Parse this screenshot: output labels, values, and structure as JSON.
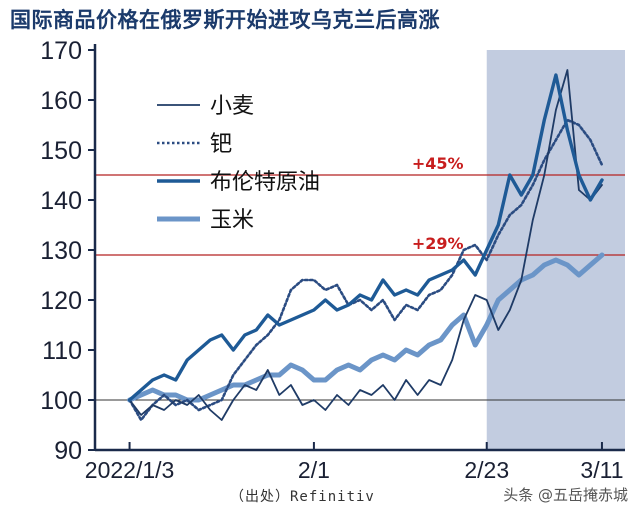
{
  "title": "国际商品价格在俄罗斯开始进攻乌克兰后高涨",
  "source": "（出处）Refinitiv",
  "credit": "头条 @五岳掩赤城",
  "colors": {
    "wheat": "#1f3b66",
    "palladium": "#2b4c82",
    "brent": "#1e5a96",
    "corn": "#6b95c8",
    "shade": "#c2cce0",
    "refline": "#b52222",
    "reftext": "#c81e1e",
    "axis": "#1a2a4a"
  },
  "chart_data": {
    "type": "line",
    "ylim": [
      90,
      170
    ],
    "yticks": [
      90,
      100,
      110,
      120,
      130,
      140,
      150,
      160,
      170
    ],
    "xlim": [
      0,
      46
    ],
    "xticks": [
      {
        "x": 3,
        "label": "2022/1/3"
      },
      {
        "x": 19,
        "label": "2/1"
      },
      {
        "x": 34,
        "label": "2/23"
      },
      {
        "x": 44,
        "label": "3/11"
      }
    ],
    "shaded_region": [
      34,
      46
    ],
    "reference_lines": [
      {
        "y": 145,
        "label": "+45%"
      },
      {
        "y": 129,
        "label": "+29%"
      }
    ],
    "baseline": 100,
    "legend": [
      "小麦",
      "钯",
      "布伦特原油",
      "玉米"
    ],
    "series": [
      {
        "name": "小麦",
        "style": "thin",
        "x": [
          3,
          4,
          5,
          6,
          7,
          8,
          9,
          10,
          11,
          12,
          13,
          14,
          15,
          16,
          17,
          18,
          19,
          20,
          21,
          22,
          23,
          24,
          25,
          26,
          27,
          28,
          29,
          30,
          31,
          32,
          33,
          34,
          35,
          36,
          37,
          38,
          39,
          40,
          41,
          42,
          43,
          44
        ],
        "values": [
          100,
          97,
          99,
          98,
          100,
          99,
          101,
          98,
          96,
          100,
          103,
          102,
          106,
          101,
          103,
          99,
          100,
          98,
          101,
          99,
          102,
          101,
          103,
          100,
          104,
          101,
          104,
          103,
          108,
          116,
          121,
          120,
          114,
          118,
          124,
          136,
          145,
          158,
          166,
          142,
          140,
          143
        ]
      },
      {
        "name": "钯",
        "style": "dotted",
        "x": [
          3,
          4,
          5,
          6,
          7,
          8,
          9,
          10,
          11,
          12,
          13,
          14,
          15,
          16,
          17,
          18,
          19,
          20,
          21,
          22,
          23,
          24,
          25,
          26,
          27,
          28,
          29,
          30,
          31,
          32,
          33,
          34,
          35,
          36,
          37,
          38,
          39,
          40,
          41,
          42,
          43,
          44
        ],
        "values": [
          100,
          96,
          99,
          101,
          99,
          100,
          98,
          99,
          100,
          105,
          108,
          111,
          113,
          116,
          122,
          124,
          124,
          122,
          123,
          119,
          120,
          118,
          120,
          116,
          119,
          118,
          121,
          122,
          125,
          130,
          131,
          128,
          133,
          137,
          139,
          143,
          148,
          152,
          156,
          155,
          152,
          147
        ]
      },
      {
        "name": "布伦特原油",
        "style": "medium",
        "x": [
          3,
          4,
          5,
          6,
          7,
          8,
          9,
          10,
          11,
          12,
          13,
          14,
          15,
          16,
          17,
          18,
          19,
          20,
          21,
          22,
          23,
          24,
          25,
          26,
          27,
          28,
          29,
          30,
          31,
          32,
          33,
          34,
          35,
          36,
          37,
          38,
          39,
          40,
          41,
          42,
          43,
          44
        ],
        "values": [
          100,
          102,
          104,
          105,
          104,
          108,
          110,
          112,
          113,
          110,
          113,
          114,
          117,
          115,
          116,
          117,
          118,
          120,
          118,
          119,
          121,
          120,
          124,
          121,
          122,
          121,
          124,
          125,
          126,
          128,
          125,
          130,
          135,
          145,
          141,
          145,
          156,
          165,
          154,
          145,
          140,
          144
        ]
      },
      {
        "name": "玉米",
        "style": "thick",
        "x": [
          3,
          4,
          5,
          6,
          7,
          8,
          9,
          10,
          11,
          12,
          13,
          14,
          15,
          16,
          17,
          18,
          19,
          20,
          21,
          22,
          23,
          24,
          25,
          26,
          27,
          28,
          29,
          30,
          31,
          32,
          33,
          34,
          35,
          36,
          37,
          38,
          39,
          40,
          41,
          42,
          43,
          44
        ],
        "values": [
          100,
          101,
          102,
          101,
          101,
          100,
          100,
          101,
          102,
          103,
          103,
          104,
          105,
          105,
          107,
          106,
          104,
          104,
          106,
          107,
          106,
          108,
          109,
          108,
          110,
          109,
          111,
          112,
          115,
          117,
          111,
          115,
          120,
          122,
          124,
          125,
          127,
          128,
          127,
          125,
          127,
          129
        ]
      }
    ]
  }
}
